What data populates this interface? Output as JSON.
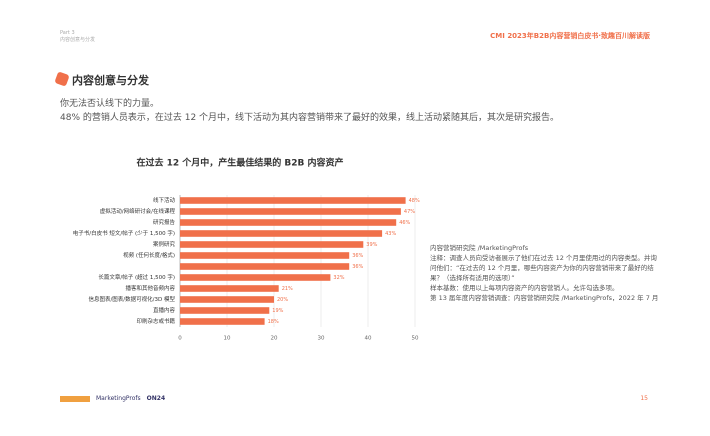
{
  "header": {
    "part": "Part 3",
    "part_title": "内容创意与分发",
    "doc_title": "CMI 2023年B2B内容营销白皮书·致趣百川解读版"
  },
  "section": {
    "title": "内容创意与分发",
    "lead": "你无法否认线下的力量。",
    "text": "48% 的营销人员表示，在过去 12 个月中，线下活动为其内容营销带来了最好的效果，线上活动紧随其后，其次是研究报告。"
  },
  "chart_data": {
    "type": "hbar",
    "title": "在过去 12 个月中，产生最佳结果的 B2B 内容资产",
    "categories": [
      "线下活动",
      "虚拟活动/网络研讨会/在线课程",
      "研究报告",
      "电子书/白皮书 短文/帖子 (少于 1,500 字)",
      "案例研究",
      "视频 (任何长度/格式)",
      null,
      "长篇文章/帖子 (超过 1,500 字)",
      "播客和其他音频内容",
      "信息图表/图表/数据可视化/3D 模型",
      "直播内容",
      "印刷杂志或书籍"
    ],
    "values": [
      48,
      47,
      46,
      43,
      39,
      36,
      36,
      32,
      21,
      20,
      19,
      18
    ],
    "value_labels": [
      "48%",
      "47%",
      "46%",
      "43%",
      "39%",
      "36%",
      "36%",
      "32%",
      "21%",
      "20%",
      "19%",
      "18%"
    ],
    "color": "#f0704a",
    "xlim": [
      0,
      50
    ],
    "xticks": [
      0,
      10,
      20,
      30,
      40,
      50
    ],
    "grid": true
  },
  "notes": {
    "source": "内容营销研究院 /MarketingProfs",
    "note": "注释：调查人员向受访者展示了他们在过去 12 个月里使用过的内容类型。并询问他们：“在过去的 12 个月里，哪些内容资产为你的内容营销带来了最好的结果？（选择所有适用的选项）”",
    "base": "样本基数：使用以上每项内容资产的内容营销人。允许勾选多项。",
    "survey": "第 13 届年度内容营销调查：内容营销研究院 /MarketingProfs，2022 年 7 月"
  },
  "footer": {
    "logo1": "MarketingProfs",
    "logo2": "ON24",
    "page": "15"
  }
}
